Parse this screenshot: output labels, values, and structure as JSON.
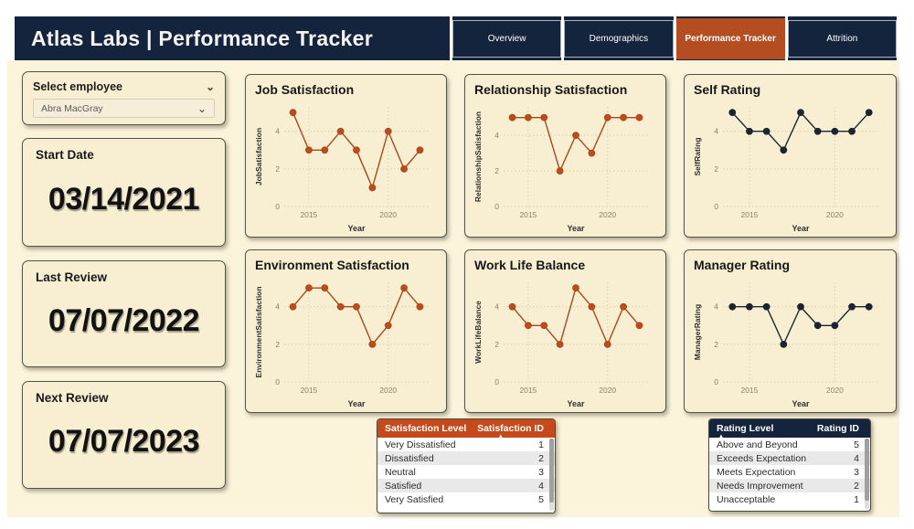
{
  "header": {
    "title": "Atlas Labs | Performance Tracker",
    "tabs": [
      {
        "label": "Overview",
        "active": false
      },
      {
        "label": "Demographics",
        "active": false
      },
      {
        "label": "Performance Tracker",
        "active": true
      },
      {
        "label": "Attrition",
        "active": false
      }
    ]
  },
  "sidebar": {
    "employee_select": {
      "label": "Select employee",
      "value": "Abra MacGray",
      "chevron_icon": "⌄"
    },
    "cards": [
      {
        "label": "Start Date",
        "value": "03/14/2021"
      },
      {
        "label": "Last Review",
        "value": "07/07/2022"
      },
      {
        "label": "Next Review",
        "value": "07/07/2023"
      }
    ]
  },
  "colors": {
    "navy": "#14243d",
    "accent_orange": "#b44d20",
    "table_header_orange": "#c5491b",
    "table_header_navy": "#15243d",
    "background_cream": "#fbf3da",
    "card_cream": "#f8efd2",
    "rust_line": "#a8481d",
    "rust_marker": "#bd4c1c",
    "dark_line": "#1c2432"
  },
  "chart_data": [
    {
      "type": "line",
      "title": "Job Satisfaction",
      "ylabel": "JobSatisfaction",
      "xlabel": "Year",
      "x": [
        2014,
        2015,
        2016,
        2017,
        2018,
        2019,
        2020,
        2021,
        2022
      ],
      "values": [
        5,
        3,
        3,
        4,
        3,
        1,
        4,
        2,
        3
      ],
      "xticks": [
        2015,
        2020
      ],
      "yticks": [
        0,
        2,
        4
      ],
      "ylim": [
        0,
        5.3
      ],
      "grid": "dotted",
      "line_color": "#a8481d",
      "marker_color": "#bd4c1c"
    },
    {
      "type": "line",
      "title": "Relationship Satisfaction",
      "ylabel": "RelationshipSatisfaction",
      "xlabel": "Year",
      "x": [
        2014,
        2015,
        2016,
        2017,
        2018,
        2019,
        2020,
        2021,
        2022
      ],
      "values": [
        5,
        5,
        5,
        2,
        4,
        3,
        5,
        5,
        5
      ],
      "xticks": [
        2015,
        2020
      ],
      "yticks": [
        0,
        2,
        4
      ],
      "ylim": [
        0,
        5.6
      ],
      "grid": "dotted",
      "line_color": "#a8481d",
      "marker_color": "#bd4c1c"
    },
    {
      "type": "line",
      "title": "Self Rating",
      "ylabel": "SelfRating",
      "xlabel": "Year",
      "x": [
        2014,
        2015,
        2016,
        2017,
        2018,
        2019,
        2020,
        2021,
        2022
      ],
      "values": [
        5,
        4,
        4,
        3,
        5,
        4,
        4,
        4,
        5
      ],
      "xticks": [
        2015,
        2020
      ],
      "yticks": [
        0,
        2,
        4
      ],
      "ylim": [
        0,
        5.3
      ],
      "grid": "dotted",
      "line_color": "#1c2432",
      "marker_color": "#1c2432"
    },
    {
      "type": "line",
      "title": "Environment Satisfaction",
      "ylabel": "EnvironmentSatisfaction",
      "xlabel": "Year",
      "x": [
        2014,
        2015,
        2016,
        2017,
        2018,
        2019,
        2020,
        2021,
        2022
      ],
      "values": [
        4,
        5,
        5,
        4,
        4,
        2,
        3,
        5,
        4
      ],
      "xticks": [
        2015,
        2020
      ],
      "yticks": [
        0,
        2,
        4
      ],
      "ylim": [
        0,
        5.3
      ],
      "grid": "dotted",
      "line_color": "#a8481d",
      "marker_color": "#bd4c1c"
    },
    {
      "type": "line",
      "title": "Work Life Balance",
      "ylabel": "WorkLifeBalance",
      "xlabel": "Year",
      "x": [
        2014,
        2015,
        2016,
        2017,
        2018,
        2019,
        2020,
        2021,
        2022
      ],
      "values": [
        4,
        3,
        3,
        2,
        5,
        4,
        2,
        4,
        3
      ],
      "xticks": [
        2015,
        2020
      ],
      "yticks": [
        0,
        2,
        4
      ],
      "ylim": [
        0,
        5.3
      ],
      "grid": "dotted",
      "line_color": "#a8481d",
      "marker_color": "#bd4c1c"
    },
    {
      "type": "line",
      "title": "Manager Rating",
      "ylabel": "ManagerRating",
      "xlabel": "Year",
      "x": [
        2014,
        2015,
        2016,
        2017,
        2018,
        2019,
        2020,
        2021,
        2022
      ],
      "values": [
        4,
        4,
        4,
        2,
        4,
        3,
        3,
        4,
        4
      ],
      "xticks": [
        2015,
        2020
      ],
      "yticks": [
        0,
        2,
        4
      ],
      "ylim": [
        0,
        5.3
      ],
      "grid": "dotted",
      "line_color": "#1c2432",
      "marker_color": "#1c2432"
    }
  ],
  "tables": [
    {
      "name": "satisfaction-levels",
      "columns": [
        "Satisfaction Level",
        "Satisfaction ID"
      ],
      "sorted_column": 1,
      "sort_icon": "▲",
      "header_bg": "#c5491b",
      "rows": [
        [
          "Very Dissatisfied",
          1
        ],
        [
          "Dissatisfied",
          2
        ],
        [
          "Neutral",
          3
        ],
        [
          "Satisfied",
          4
        ],
        [
          "Very Satisfied",
          5
        ]
      ]
    },
    {
      "name": "rating-levels",
      "columns": [
        "Rating Level",
        "Rating ID"
      ],
      "sorted_column": 0,
      "sort_icon": "▲",
      "header_bg": "#15243d",
      "rows": [
        [
          "Above and Beyond",
          5
        ],
        [
          "Exceeds Expectation",
          4
        ],
        [
          "Meets Expectation",
          3
        ],
        [
          "Needs Improvement",
          2
        ],
        [
          "Unacceptable",
          1
        ]
      ]
    }
  ]
}
